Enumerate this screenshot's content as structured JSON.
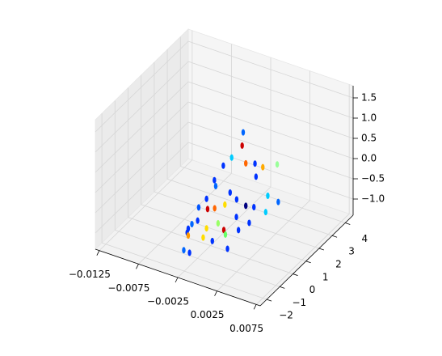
{
  "chart_data": {
    "type": "scatter3d",
    "xlim": [
      -0.013,
      0.008
    ],
    "ylim": [
      -2.5,
      4.6
    ],
    "zlim": [
      -1.4,
      1.8
    ],
    "xticks": [
      {
        "value": -0.0125,
        "label": "−0.0125"
      },
      {
        "value": -0.0075,
        "label": "−0.0075"
      },
      {
        "value": -0.0025,
        "label": "−0.0025"
      },
      0.0025,
      0.0075
    ],
    "yticks": [
      {
        "value": -2,
        "label": "−2"
      },
      {
        "value": -1,
        "label": "−1"
      },
      0,
      1,
      2,
      3,
      4
    ],
    "zticks": [
      {
        "value": -1.0,
        "label": "−1.0"
      },
      {
        "value": -0.5,
        "label": "−0.5"
      },
      {
        "value": 0.0,
        "label": "0.0"
      },
      0.5,
      {
        "value": 1.0,
        "label": "1.0"
      },
      1.5
    ],
    "grid": true,
    "x": [
      0.0,
      0.0002,
      -0.0008,
      -0.0012,
      0.0005,
      0.001,
      0.0015,
      -0.002,
      -0.0015,
      0.0008,
      0.002,
      -0.0005,
      -0.0025,
      -0.003,
      -0.0022,
      -0.0018,
      -0.001,
      0.0,
      0.0005,
      -0.0028,
      -0.0032,
      -0.0035,
      -0.002,
      -0.0012,
      0.0003,
      0.0012,
      0.0018,
      -0.0008,
      -0.0038,
      -0.004,
      -0.0026,
      -0.0016,
      -0.0006,
      0.0004,
      0.0011,
      0.0022,
      0.0028,
      -0.003,
      -0.0034,
      0.0
    ],
    "y": [
      1.0,
      0.8,
      0.6,
      0.2,
      0.9,
      1.3,
      1.6,
      0.0,
      -0.2,
      1.5,
      2.4,
      0.3,
      -0.3,
      -0.6,
      -0.4,
      -0.1,
      0.2,
      0.5,
      0.9,
      -0.8,
      -1.0,
      -1.1,
      -0.6,
      -0.2,
      0.3,
      1.1,
      1.8,
      0.0,
      -1.0,
      -0.8,
      -0.5,
      -0.4,
      0.0,
      0.4,
      0.8,
      1.4,
      2.0,
      -1.3,
      -1.5,
      -0.2
    ],
    "z": [
      1.25,
      1.0,
      0.7,
      0.6,
      0.55,
      0.45,
      0.3,
      0.25,
      0.2,
      0.05,
      0.15,
      -0.05,
      -0.15,
      -0.3,
      -0.35,
      -0.4,
      -0.35,
      -0.25,
      -0.5,
      -0.55,
      -0.6,
      -0.7,
      -0.75,
      -0.7,
      -0.6,
      -0.55,
      -0.45,
      -0.9,
      -0.85,
      -1.0,
      -1.05,
      -1.1,
      -1.0,
      -0.95,
      -0.85,
      -0.7,
      -0.6,
      -1.2,
      -1.1,
      -1.25
    ],
    "colors": [
      "#0066ff",
      "#cc0000",
      "#00ccff",
      "#0033ff",
      "#ff6600",
      "#0033ff",
      "#ffaa00",
      "#0033ff",
      "#0066ff",
      "#0033ff",
      "#99ff99",
      "#0033ff",
      "#0033ff",
      "#0055ff",
      "#cc0000",
      "#ff6600",
      "#ffdd00",
      "#0033ff",
      "#000080",
      "#0033ff",
      "#0066ff",
      "#0033ff",
      "#ffdd00",
      "#99ff66",
      "#0033ff",
      "#0033ff",
      "#00ccff",
      "#cc0000",
      "#0033ff",
      "#ff9900",
      "#ffdd00",
      "#0033ff",
      "#66ff66",
      "#0033ff",
      "#0033ff",
      "#00ccff",
      "#0066ff",
      "#0033ff",
      "#0066ff",
      "#0033ff"
    ]
  }
}
